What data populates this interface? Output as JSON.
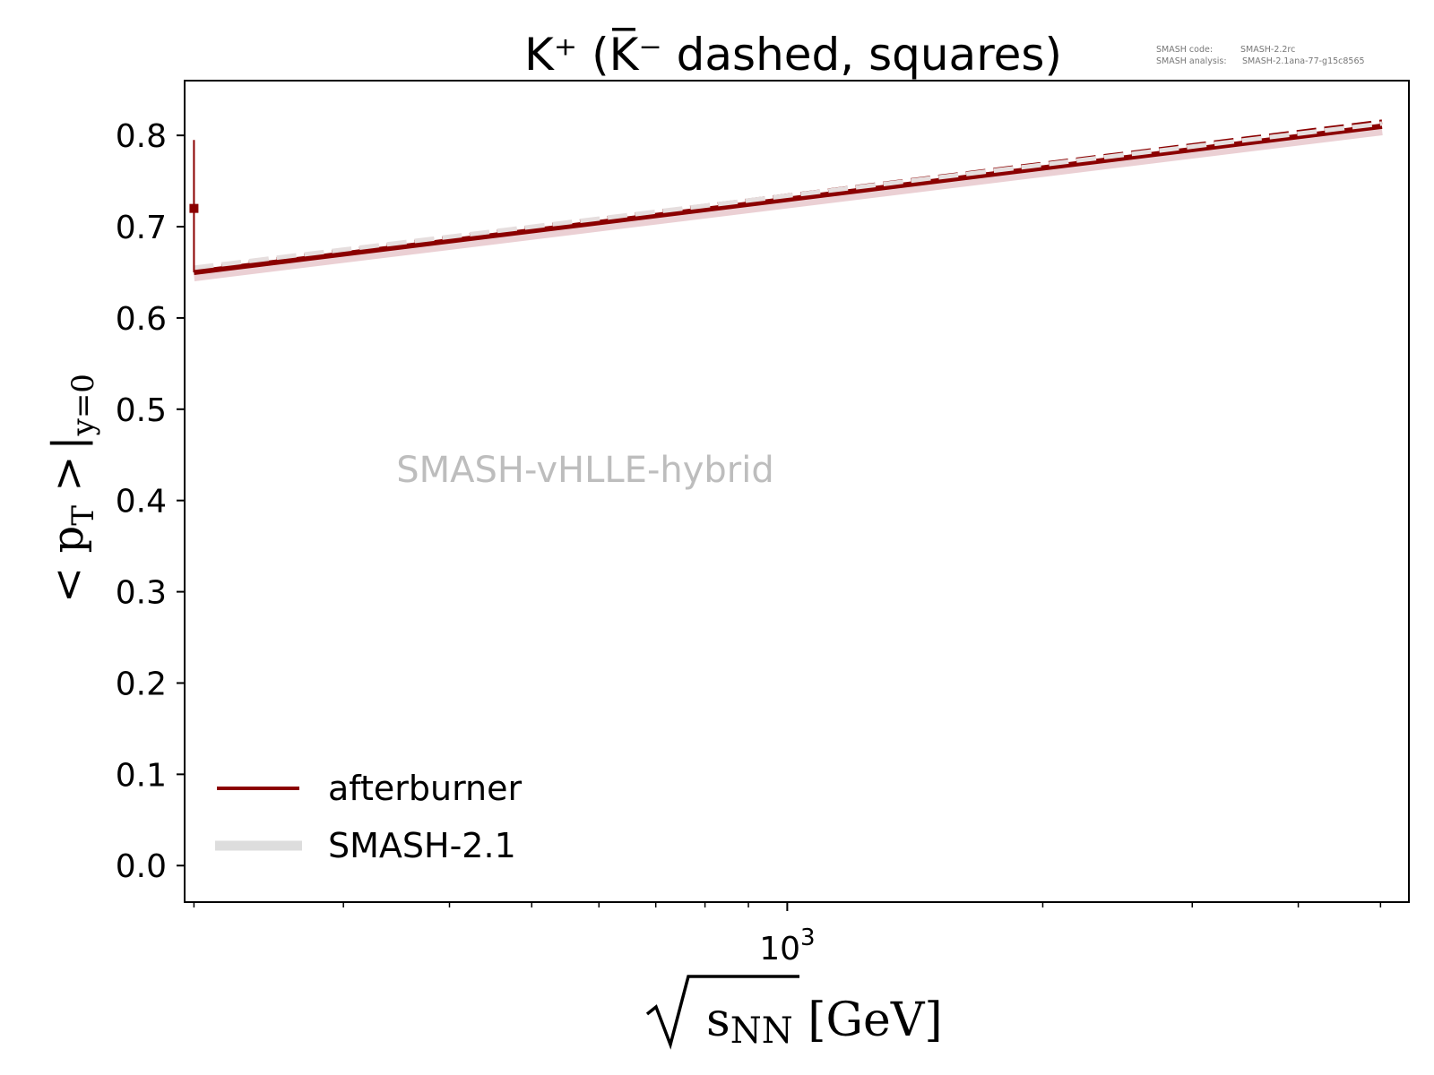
{
  "chart_data": {
    "type": "line",
    "title": "K⁺ (K̅⁻ dashed, squares)",
    "meta": {
      "code_label": "SMASH code:",
      "code_value": "SMASH-2.2rc",
      "analysis_label": "SMASH analysis:",
      "analysis_value": "SMASH-2.1ana-77-g15c8565"
    },
    "watermark": "SMASH-vHLLE-hybrid",
    "xscale": "log",
    "xlim": [
      195,
      5400
    ],
    "ylim": [
      -0.04,
      0.86
    ],
    "x_major_ticks": [
      1000
    ],
    "x_major_tick_labels": [
      {
        "base": "10",
        "exp": "3"
      }
    ],
    "x_minor_ticks": [
      200,
      300,
      400,
      500,
      600,
      700,
      800,
      900,
      2000,
      3000,
      4000,
      5000
    ],
    "y_ticks": [
      0.0,
      0.1,
      0.2,
      0.3,
      0.4,
      0.5,
      0.6,
      0.7,
      0.8
    ],
    "y_tick_labels": [
      "0.0",
      "0.1",
      "0.2",
      "0.3",
      "0.4",
      "0.5",
      "0.6",
      "0.7",
      "0.8"
    ],
    "ylabel": {
      "main": "< p",
      "sub_t": "T",
      "close": " >",
      "bar": "|",
      "sub_y": "y=0"
    },
    "xlabel": {
      "root": "s",
      "sub": "NN",
      "unit": " [GeV]"
    },
    "legend_position": "lower-left",
    "legend": [
      {
        "label": "afterburner",
        "color": "#8b0000",
        "style": "solid"
      },
      {
        "label": "SMASH-2.1",
        "color": "#dddddd",
        "style": "band"
      }
    ],
    "series": [
      {
        "name": "afterburner",
        "role": "K+ solid",
        "color": "#8b0000",
        "style": "solid",
        "x": [
          200,
          5020
        ],
        "y": [
          0.65,
          0.81
        ]
      },
      {
        "name": "",
        "role": "K- dashed",
        "color": "#8b0000",
        "style": "dashed",
        "x": [
          200,
          5020
        ],
        "y": [
          0.653,
          0.815
        ]
      },
      {
        "name": "SMASH-2.1",
        "role": "K+ reference band",
        "color": "#e8c8cc",
        "style": "band",
        "x": [
          200,
          5020
        ],
        "y": [
          0.646,
          0.806
        ]
      },
      {
        "name": "",
        "role": "K+ reference light dashed",
        "color": "#e6dede",
        "style": "dashed",
        "x": [
          200,
          5020
        ],
        "y": [
          0.655,
          0.813
        ]
      }
    ],
    "points": [
      {
        "x": 200,
        "y": 0.72,
        "yerr_low": 0.07,
        "yerr_high": 0.075,
        "marker": "square",
        "color": "#8b0000"
      }
    ]
  }
}
